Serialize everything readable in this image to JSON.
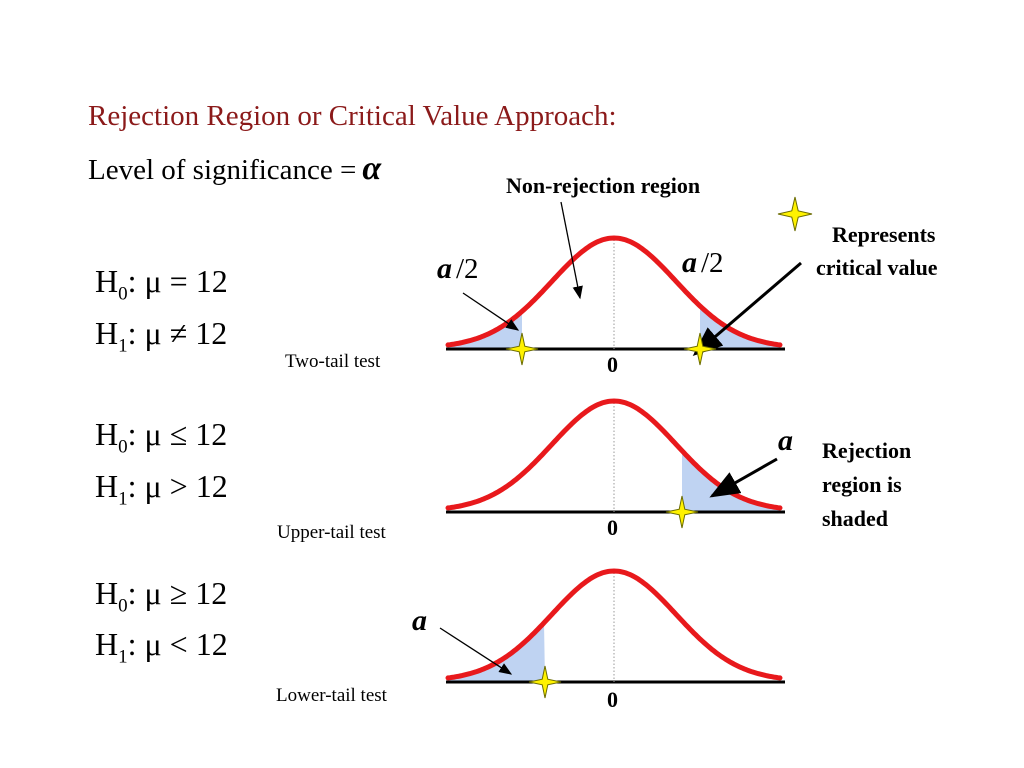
{
  "slide": {
    "title": "Rejection Region or Critical Value Approach:",
    "significance_label": "Level of significance =",
    "significance_symbol": "α"
  },
  "labels": {
    "non_rejection": "Non-rejection region",
    "represents_line1": "Represents",
    "represents_line2": "critical value",
    "rejection_line1": "Rejection",
    "rejection_line2": "region is",
    "rejection_line3": "shaded",
    "alpha_letter": "a",
    "half": "/2",
    "zero": "0"
  },
  "tests": [
    {
      "h0_prefix": "H",
      "h0_sub": "0",
      "h0_rel": ": μ = 12",
      "h1_prefix": "H",
      "h1_sub": "1",
      "h1_rel": ": μ ≠ 12",
      "name": "Two-tail test"
    },
    {
      "h0_prefix": "H",
      "h0_sub": "0",
      "h0_rel": ": μ ≤ 12",
      "h1_prefix": "H",
      "h1_sub": "1",
      "h1_rel": ": μ > 12",
      "name": "Upper-tail test"
    },
    {
      "h0_prefix": "H",
      "h0_sub": "0",
      "h0_rel": ": μ ≥ 12",
      "h1_prefix": "H",
      "h1_sub": "1",
      "h1_rel": ": μ < 12",
      "name": "Lower-tail test"
    }
  ],
  "colors": {
    "title": "#8b1a1a",
    "curve": "#e8191c",
    "shade": "#bfd3f2",
    "star_fill": "#fff200",
    "star_stroke": "#6b6b00"
  }
}
